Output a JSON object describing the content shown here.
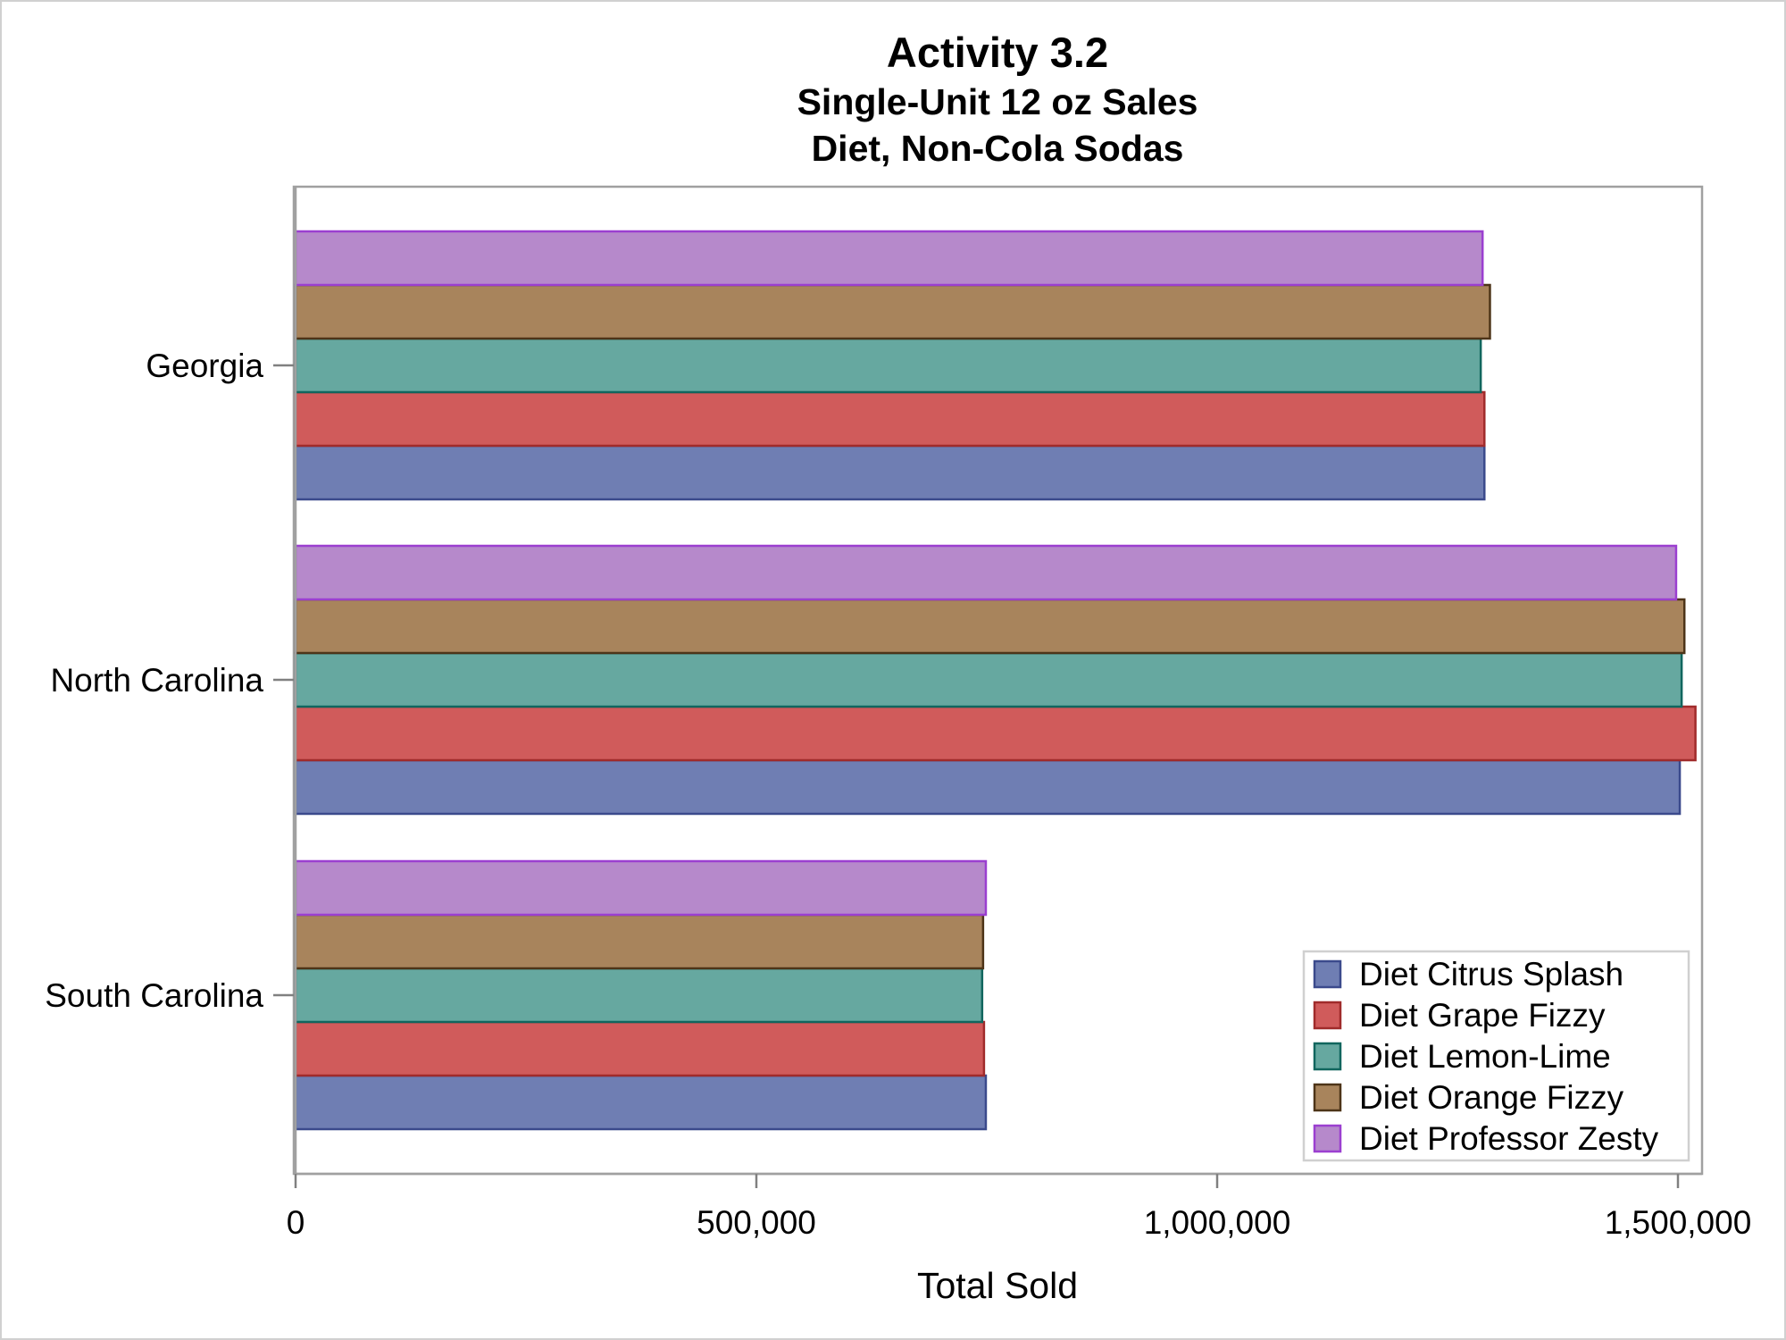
{
  "chart_data": {
    "type": "bar",
    "orientation": "horizontal",
    "title": "Activity 3.2",
    "subtitles": [
      "Single-Unit 12 oz Sales",
      "Diet, Non-Cola Sodas"
    ],
    "xlabel": "Total Sold",
    "ylabel": "",
    "xlim": [
      0,
      1520000
    ],
    "x_ticks": [
      0,
      500000,
      1000000,
      1500000
    ],
    "x_tick_labels": [
      "0",
      "500,000",
      "1,000,000",
      "1,500,000"
    ],
    "categories": [
      "Georgia",
      "North Carolina",
      "South Carolina"
    ],
    "series": [
      {
        "name": "Diet Citrus Splash",
        "fill": "#6f7eb3",
        "stroke": "#3b4a8c",
        "values": [
          1290000,
          1502000,
          749000
        ]
      },
      {
        "name": "Diet Grape Fizzy",
        "fill": "#d05b5b",
        "stroke": "#a02b2b",
        "values": [
          1290000,
          1519000,
          747000
        ]
      },
      {
        "name": "Diet Lemon-Lime",
        "fill": "#66a8a0",
        "stroke": "#11665e",
        "values": [
          1286000,
          1504000,
          745000
        ]
      },
      {
        "name": "Diet Orange Fizzy",
        "fill": "#a8845c",
        "stroke": "#4d3418",
        "values": [
          1296000,
          1507000,
          746000
        ]
      },
      {
        "name": "Diet Professor Zesty",
        "fill": "#b689cb",
        "stroke": "#9b3fd0",
        "values": [
          1288000,
          1498000,
          749000
        ]
      }
    ],
    "grid": false,
    "legend_position": "bottom-right inside"
  }
}
